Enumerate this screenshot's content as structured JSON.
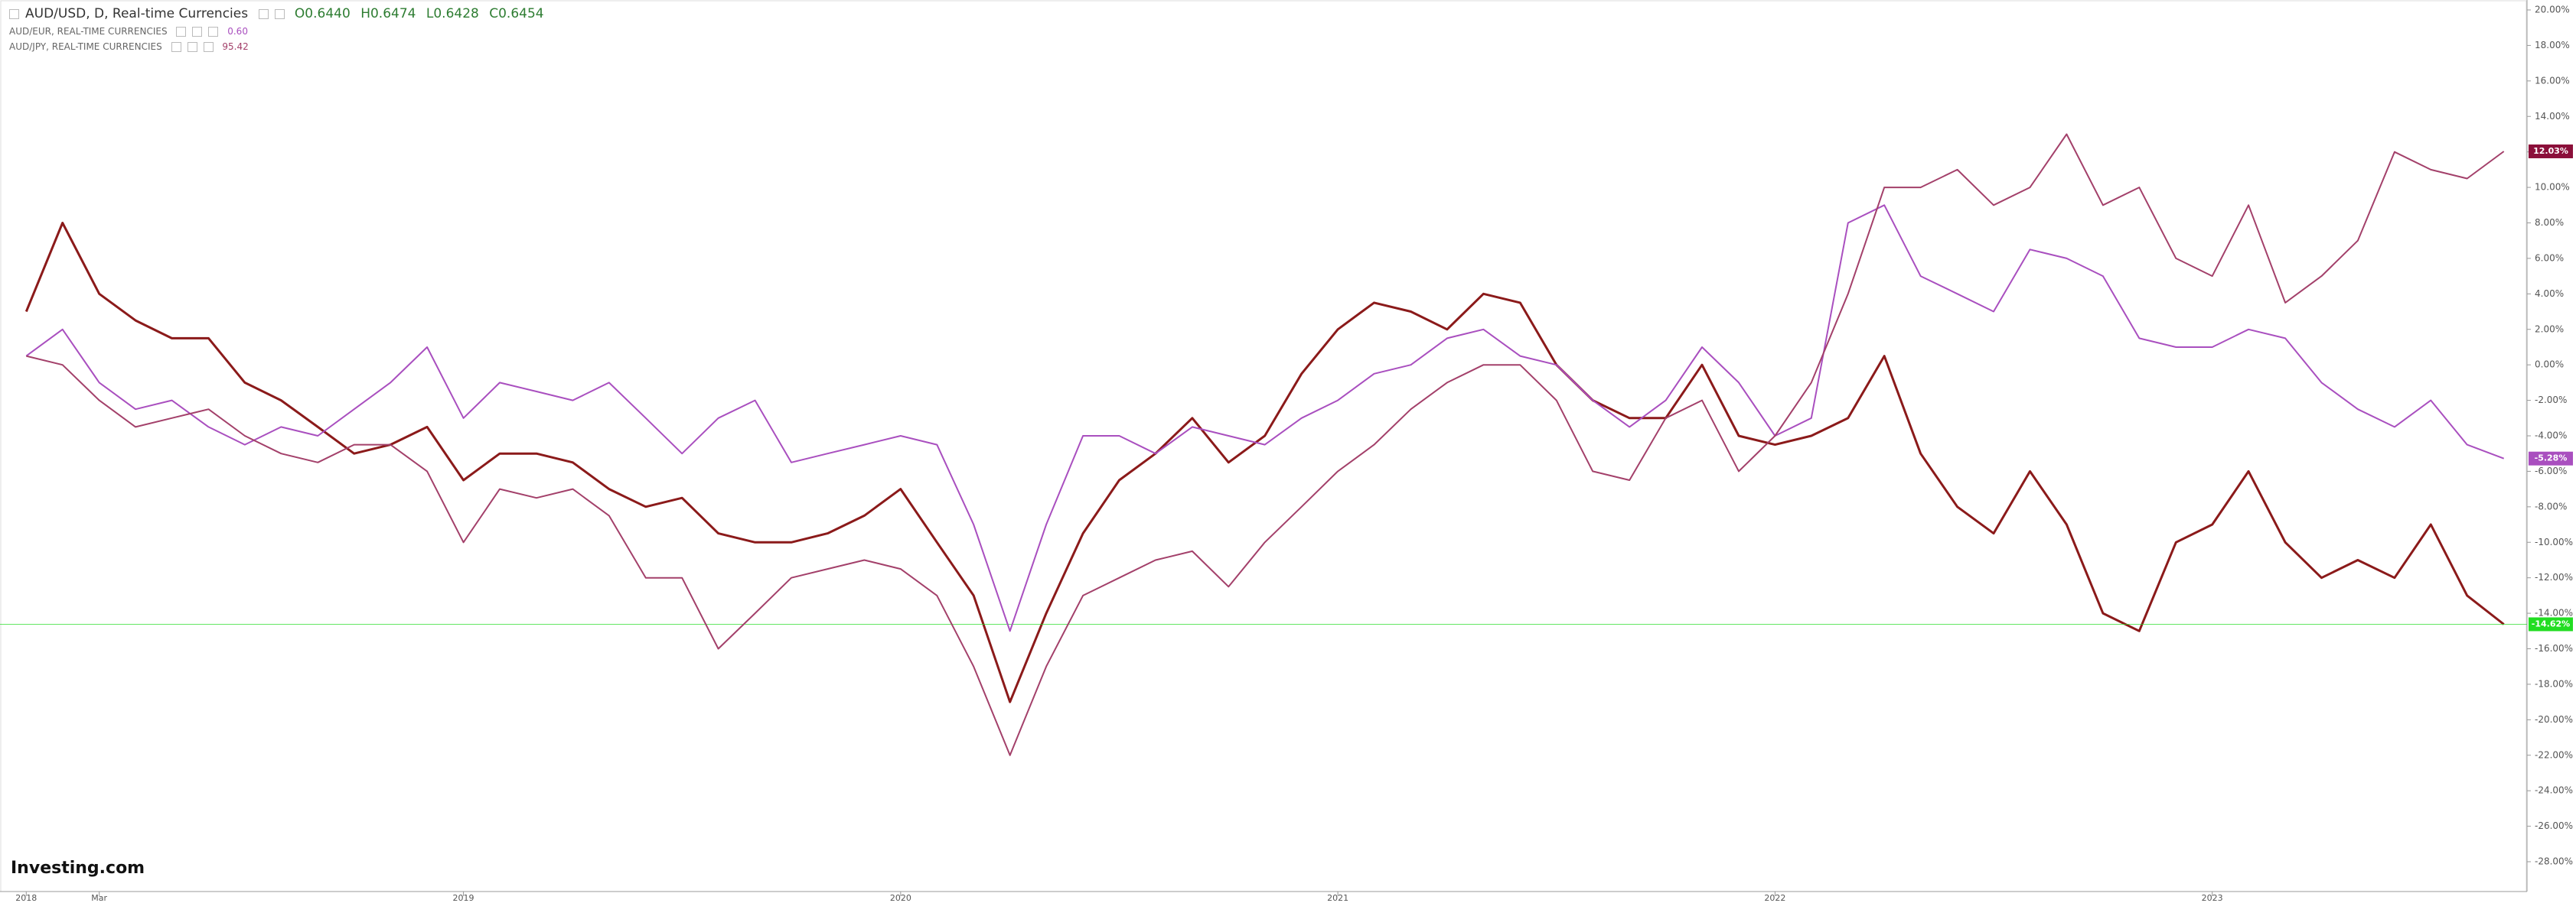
{
  "chart_data": {
    "type": "line",
    "header": {
      "symbol": "AUD/USD, D, Real-time Currencies",
      "open": "O0.6440",
      "high": "H0.6474",
      "low": "L0.6428",
      "close": "C0.6454"
    },
    "compare": [
      {
        "label": "AUD/EUR, REAL-TIME CURRENCIES",
        "value": "0.60"
      },
      {
        "label": "AUD/JPY, REAL-TIME CURRENCIES",
        "value": "95.42"
      }
    ],
    "watermark": "Investing.com",
    "x": [
      2018,
      2018.083,
      2018.167,
      2018.25,
      2018.333,
      2018.417,
      2018.5,
      2018.583,
      2018.667,
      2018.75,
      2018.833,
      2018.917,
      2019,
      2019.083,
      2019.167,
      2019.25,
      2019.333,
      2019.417,
      2019.5,
      2019.583,
      2019.667,
      2019.75,
      2019.833,
      2019.917,
      2020,
      2020.083,
      2020.167,
      2020.25,
      2020.333,
      2020.417,
      2020.5,
      2020.583,
      2020.667,
      2020.75,
      2020.833,
      2020.917,
      2021,
      2021.083,
      2021.167,
      2021.25,
      2021.333,
      2021.417,
      2021.5,
      2021.583,
      2021.667,
      2021.75,
      2021.833,
      2021.917,
      2022,
      2022.083,
      2022.167,
      2022.25,
      2022.333,
      2022.417,
      2022.5,
      2022.583,
      2022.667,
      2022.75,
      2022.833,
      2022.917,
      2023,
      2023.083,
      2023.167,
      2023.25,
      2023.333,
      2023.417,
      2023.5,
      2023.583,
      2023.667
    ],
    "series": [
      {
        "name": "AUD/USD",
        "color": "#8b1a1a",
        "end_label": "-14.62%",
        "badge_color": "#22dd22",
        "values": [
          3,
          8,
          4,
          2.5,
          1.5,
          1.5,
          -1,
          -2,
          -3.5,
          -5,
          -4.5,
          -3.5,
          -6.5,
          -5,
          -5,
          -5.5,
          -7,
          -8,
          -7.5,
          -9.5,
          -10,
          -10,
          -9.5,
          -8.5,
          -7,
          -10,
          -13,
          -19,
          -14,
          -9.5,
          -6.5,
          -5,
          -3,
          -5.5,
          -4,
          -0.5,
          2,
          3.5,
          3,
          2,
          4,
          3.5,
          0,
          -2,
          -3,
          -3,
          0,
          -4,
          -4.5,
          -4,
          -3,
          0.5,
          -5,
          -8,
          -9.5,
          -6,
          -9,
          -14,
          -15,
          -10,
          -9,
          -6,
          -10,
          -12,
          -11,
          -12,
          -9,
          -13,
          -14.62
        ]
      },
      {
        "name": "AUD/EUR",
        "color": "#a94fbf",
        "end_label": "-5.28%",
        "badge_color": "#a94fbf",
        "values": [
          0.5,
          2,
          -1,
          -2.5,
          -2,
          -3.5,
          -4.5,
          -3.5,
          -4,
          -2.5,
          -1,
          1,
          -3,
          -1,
          -1.5,
          -2,
          -1,
          -3,
          -5,
          -3,
          -2,
          -5.5,
          -5,
          -4.5,
          -4,
          -4.5,
          -9,
          -15,
          -9,
          -4,
          -4,
          -5,
          -3.5,
          -4,
          -4.5,
          -3,
          -2,
          -0.5,
          0,
          1.5,
          2,
          0.5,
          0,
          -2,
          -3.5,
          -2,
          1,
          -1,
          -4,
          -3,
          8,
          9,
          5,
          4,
          3,
          6.5,
          6,
          5,
          1.5,
          1,
          1,
          2,
          1.5,
          -1,
          -2.5,
          -3.5,
          -2,
          -4.5,
          -5.28
        ]
      },
      {
        "name": "AUD/JPY",
        "color": "#a3406a",
        "end_label": "12.03%",
        "badge_color": "#8b0f3a",
        "values": [
          0.5,
          0,
          -2,
          -3.5,
          -3,
          -2.5,
          -4,
          -5,
          -5.5,
          -4.5,
          -4.5,
          -6,
          -10,
          -7,
          -7.5,
          -7,
          -8.5,
          -12,
          -12,
          -16,
          -14,
          -12,
          -11.5,
          -11,
          -11.5,
          -13,
          -17,
          -22,
          -17,
          -13,
          -12,
          -11,
          -10.5,
          -12.5,
          -10,
          -8,
          -6,
          -4.5,
          -2.5,
          -1,
          0,
          0,
          -2,
          -6,
          -6.5,
          -3,
          -2,
          -6,
          -4,
          -1,
          4,
          10,
          10,
          11,
          9,
          10,
          13,
          9,
          10,
          6,
          5,
          9,
          3.5,
          5,
          7,
          12,
          11,
          10.5,
          12.03
        ]
      }
    ],
    "xlim": [
      2017.94,
      2023.72
    ],
    "xticks": [
      {
        "value": 2018,
        "label": "2018"
      },
      {
        "value": 2018.167,
        "label": "Mar"
      },
      {
        "value": 2019,
        "label": "2019"
      },
      {
        "value": 2020,
        "label": "2020"
      },
      {
        "value": 2021,
        "label": "2021"
      },
      {
        "value": 2022,
        "label": "2022"
      },
      {
        "value": 2023,
        "label": "2023"
      }
    ],
    "ylim": [
      -28,
      20
    ],
    "yticks": [
      {
        "value": 20,
        "label": "20.00%"
      },
      {
        "value": 18,
        "label": "18.00%"
      },
      {
        "value": 16,
        "label": "16.00%"
      },
      {
        "value": 14,
        "label": "14.00%"
      },
      {
        "value": 12,
        "label": "12.00%"
      },
      {
        "value": 10,
        "label": "10.00%"
      },
      {
        "value": 8,
        "label": "8.00%"
      },
      {
        "value": 6,
        "label": "6.00%"
      },
      {
        "value": 4,
        "label": "4.00%"
      },
      {
        "value": 2,
        "label": "2.00%"
      },
      {
        "value": 0,
        "label": "0.00%"
      },
      {
        "value": -2,
        "label": "-2.00%"
      },
      {
        "value": -4,
        "label": "-4.00%"
      },
      {
        "value": -6,
        "label": "-6.00%"
      },
      {
        "value": -8,
        "label": "-8.00%"
      },
      {
        "value": -10,
        "label": "-10.00%"
      },
      {
        "value": -12,
        "label": "-12.00%"
      },
      {
        "value": -14,
        "label": "-14.00%"
      },
      {
        "value": -16,
        "label": "-16.00%"
      },
      {
        "value": -18,
        "label": "-18.00%"
      },
      {
        "value": -20,
        "label": "-20.00%"
      },
      {
        "value": -22,
        "label": "-22.00%"
      },
      {
        "value": -24,
        "label": "-24.00%"
      },
      {
        "value": -26,
        "label": "-26.00%"
      },
      {
        "value": -28,
        "label": "-28.00%"
      }
    ],
    "grid": false
  }
}
